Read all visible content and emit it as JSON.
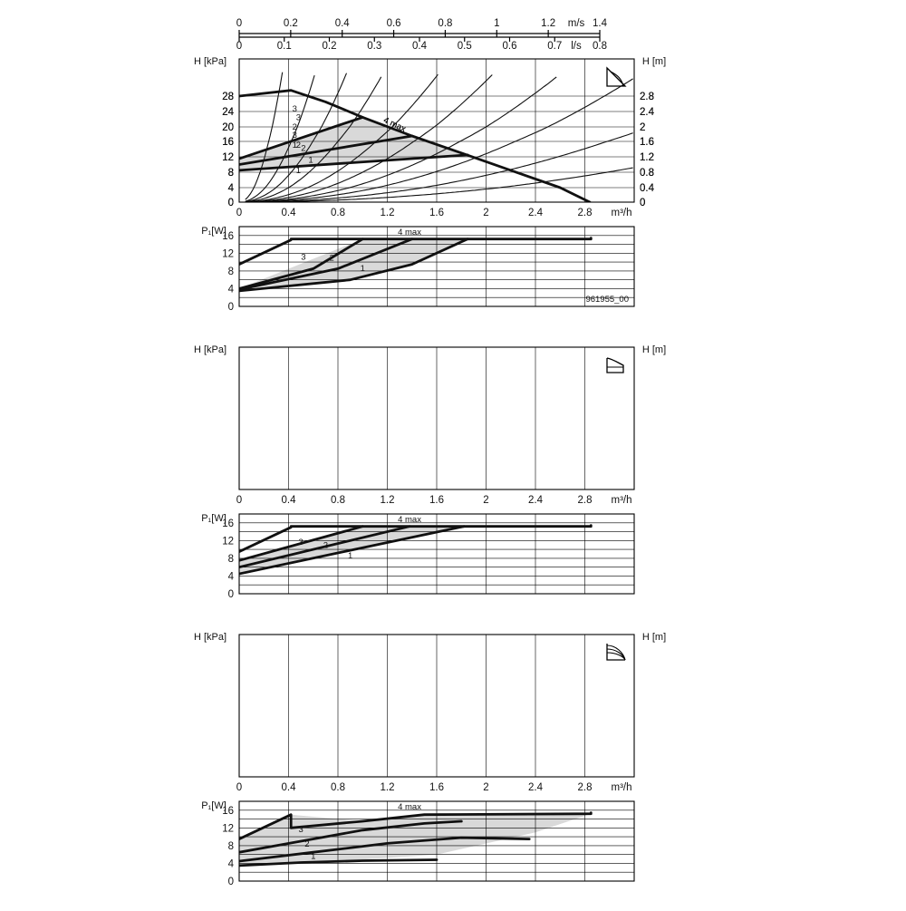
{
  "top_axes": {
    "velocity": {
      "unit": "m/s",
      "ticks": [
        0,
        0.2,
        0.4,
        0.6,
        0.8,
        1,
        1.2,
        1.4
      ]
    },
    "flow_ls": {
      "unit": "l/s",
      "ticks": [
        0,
        0.1,
        0.2,
        0.3,
        0.4,
        0.5,
        0.6,
        0.7,
        0.8
      ]
    }
  },
  "chart_data": [
    {
      "type": "line",
      "panel": "head",
      "mode_icon": "proportional-pressure-icon",
      "xlabel": "m³/h",
      "ylabel_left": "H [kPa]",
      "ylabel_right": "H [m]",
      "xlim": [
        0,
        3.2
      ],
      "ylim": [
        0,
        32
      ],
      "x_ticks": [
        "0",
        "0.4",
        "0.8",
        "1.2",
        "1.6",
        "2",
        "2.4",
        "2.8"
      ],
      "y_ticks": [
        "0",
        "4",
        "8",
        "12",
        "16",
        "20",
        "24",
        "28"
      ],
      "y_right_ticks": [
        "0",
        "0.4",
        "0.8",
        "1.2",
        "1.6",
        "2",
        "2.4",
        "2.8"
      ],
      "series": [
        {
          "name": "4 max",
          "x": [
            0,
            0.42,
            0.7,
            1.0,
            1.4,
            1.8,
            2.2,
            2.6,
            2.84
          ],
          "y": [
            28,
            29.5,
            26.5,
            22.5,
            17.5,
            13,
            8.5,
            4,
            0
          ]
        },
        {
          "name": "3",
          "x": [
            0,
            1.0
          ],
          "y": [
            11.5,
            22.5
          ]
        },
        {
          "name": "2",
          "x": [
            0,
            1.4
          ],
          "y": [
            10,
            17.5
          ]
        },
        {
          "name": "1",
          "x": [
            0,
            1.85
          ],
          "y": [
            8.5,
            12.5
          ]
        }
      ],
      "shaded_region": {
        "x": [
          0,
          1.0,
          1.4,
          1.85,
          0
        ],
        "y": [
          11.5,
          22.5,
          17.5,
          12.5,
          8.5
        ]
      },
      "label_positions": [
        {
          "name": "4 max",
          "x": 1.25,
          "y": 20
        },
        {
          "name": "3",
          "x": 0.45,
          "y": 17
        },
        {
          "name": "2",
          "x": 0.52,
          "y": 13.5
        },
        {
          "name": "1",
          "x": 0.58,
          "y": 10.5
        }
      ],
      "system_curves": [
        {
          "k": 280
        },
        {
          "k": 90
        },
        {
          "k": 45
        },
        {
          "k": 25
        },
        {
          "k": 13
        },
        {
          "k": 8
        },
        {
          "k": 5
        },
        {
          "k": 3.2
        },
        {
          "k": 1.8
        },
        {
          "k": 0.9
        }
      ]
    },
    {
      "type": "line",
      "panel": "power",
      "ylabel": "P₁[W]",
      "xlim": [
        0,
        3.2
      ],
      "ylim": [
        0,
        18
      ],
      "y_ticks": [
        "0",
        "4",
        "8",
        "12",
        "16"
      ],
      "code": "961955_00",
      "series": [
        {
          "name": "4 max",
          "x": [
            0,
            0.42,
            0.42,
            2.85,
            2.85
          ],
          "y": [
            9.5,
            15,
            15.2,
            15.2,
            15.4
          ]
        },
        {
          "name": "3",
          "x": [
            0,
            0.6,
            1.0
          ],
          "y": [
            4,
            8.5,
            15.2
          ]
        },
        {
          "name": "2",
          "x": [
            0,
            0.8,
            1.4
          ],
          "y": [
            3.8,
            8.5,
            15.2
          ]
        },
        {
          "name": "1",
          "x": [
            0,
            0.9,
            1.4,
            1.85
          ],
          "y": [
            3.5,
            6,
            9.5,
            15.2
          ]
        }
      ],
      "shaded_region": {
        "x": [
          0,
          1.0,
          1.85,
          1.4,
          0.9
        ],
        "y": [
          4,
          15.2,
          15.2,
          9.5,
          6
        ]
      },
      "label_positions": [
        {
          "name": "4 max",
          "x": 1.38,
          "y": 16.2
        },
        {
          "name": "3",
          "x": 0.52,
          "y": 10.5
        },
        {
          "name": "2",
          "x": 0.75,
          "y": 10.3
        },
        {
          "name": "1",
          "x": 1.0,
          "y": 8
        }
      ]
    },
    {
      "type": "line",
      "panel": "head",
      "mode_icon": "constant-pressure-icon",
      "xlabel": "m³/h",
      "ylabel_left": "H [kPa]",
      "ylabel_right": "H [m]",
      "xlim": [
        0,
        3.2
      ],
      "ylim": [
        0,
        32
      ],
      "x_ticks": [
        "0",
        "0.4",
        "0.8",
        "1.2",
        "1.6",
        "2",
        "2.4",
        "2.8"
      ],
      "y_ticks": [
        "0",
        "4",
        "8",
        "12",
        "16",
        "20",
        "24",
        "28"
      ],
      "y_right_ticks": [
        "0",
        "0.4",
        "0.8",
        "1.2",
        "1.6",
        "2",
        "2.4",
        "2.8"
      ],
      "series": [
        {
          "name": "4 max",
          "x": [
            0,
            0.42,
            0.7,
            1.0,
            1.4,
            1.8,
            2.2,
            2.6,
            2.84
          ],
          "y": [
            28,
            29.5,
            26.5,
            22.5,
            17.5,
            13,
            8.5,
            4,
            0
          ]
        },
        {
          "name": "3",
          "x": [
            0,
            1.0
          ],
          "y": [
            22.5,
            22.5
          ]
        },
        {
          "name": "2",
          "x": [
            0,
            1.38
          ],
          "y": [
            18,
            18
          ]
        },
        {
          "name": "1",
          "x": [
            0,
            1.82
          ],
          "y": [
            13,
            13
          ]
        }
      ],
      "shaded_region": {
        "x": [
          0,
          1.0,
          1.82,
          0
        ],
        "y": [
          22.5,
          22.5,
          13,
          13
        ]
      },
      "label_positions": [
        {
          "name": "4 max",
          "x": 1.25,
          "y": 20
        },
        {
          "name": "3",
          "x": 0.45,
          "y": 24
        },
        {
          "name": "2",
          "x": 0.45,
          "y": 19.3
        },
        {
          "name": "1",
          "x": 0.45,
          "y": 14.3
        }
      ],
      "system_curves": [
        {
          "k": 280
        },
        {
          "k": 90
        },
        {
          "k": 45
        },
        {
          "k": 25
        },
        {
          "k": 13
        },
        {
          "k": 8
        },
        {
          "k": 5
        },
        {
          "k": 3.2
        },
        {
          "k": 1.8
        },
        {
          "k": 0.9
        }
      ]
    },
    {
      "type": "line",
      "panel": "power",
      "ylabel": "P₁[W]",
      "xlim": [
        0,
        3.2
      ],
      "ylim": [
        0,
        18
      ],
      "y_ticks": [
        "0",
        "4",
        "8",
        "12",
        "16"
      ],
      "series": [
        {
          "name": "4 max",
          "x": [
            0,
            0.42,
            0.42,
            2.85,
            2.85
          ],
          "y": [
            9.5,
            15,
            15.2,
            15.2,
            15.4
          ]
        },
        {
          "name": "3",
          "x": [
            0,
            1.0
          ],
          "y": [
            7.5,
            15.2
          ]
        },
        {
          "name": "2",
          "x": [
            0,
            1.38
          ],
          "y": [
            6,
            15.2
          ]
        },
        {
          "name": "1",
          "x": [
            0,
            1.82
          ],
          "y": [
            4.5,
            15.2
          ]
        }
      ],
      "shaded_region": {
        "x": [
          0,
          1.0,
          1.82,
          0
        ],
        "y": [
          7.5,
          15.2,
          15.2,
          4.5
        ]
      },
      "label_positions": [
        {
          "name": "4 max",
          "x": 1.38,
          "y": 16.2
        },
        {
          "name": "3",
          "x": 0.5,
          "y": 11
        },
        {
          "name": "2",
          "x": 0.7,
          "y": 10.3
        },
        {
          "name": "1",
          "x": 0.9,
          "y": 8
        }
      ]
    },
    {
      "type": "line",
      "panel": "head",
      "mode_icon": "constant-curve-icon",
      "xlabel": "m³/h",
      "ylabel_left": "H [kPa]",
      "ylabel_right": "H [m]",
      "xlim": [
        0,
        3.2
      ],
      "ylim": [
        0,
        32
      ],
      "x_ticks": [
        "0",
        "0.4",
        "0.8",
        "1.2",
        "1.6",
        "2",
        "2.4",
        "2.8"
      ],
      "y_ticks": [
        "0",
        "4",
        "8",
        "12",
        "16",
        "20",
        "24",
        "28"
      ],
      "y_right_ticks": [
        "0",
        "0.4",
        "0.8",
        "1.2",
        "1.6",
        "2",
        "2.4",
        "2.8"
      ],
      "series": [
        {
          "name": "4 max",
          "x": [
            0,
            0.42,
            0.7,
            1.0,
            1.4,
            1.8,
            2.2,
            2.6,
            2.84
          ],
          "y": [
            28,
            29.5,
            26.5,
            22.5,
            17.5,
            13,
            8.5,
            4,
            0
          ]
        },
        {
          "name": "3",
          "x": [
            0,
            0.5,
            1.0,
            1.5,
            1.8
          ],
          "y": [
            19.5,
            20.5,
            19,
            16,
            14
          ]
        },
        {
          "name": "2",
          "x": [
            0,
            0.5,
            1.0,
            1.5,
            2.0,
            2.35
          ],
          "y": [
            13,
            13,
            12,
            9.5,
            5,
            1
          ]
        },
        {
          "name": "1",
          "x": [
            0,
            0.4,
            0.8,
            1.2,
            1.6
          ],
          "y": [
            6.5,
            6.5,
            5.5,
            3.5,
            1
          ]
        }
      ],
      "shaded_region": {
        "x": [
          0,
          0.42,
          0.7,
          1.0,
          1.4,
          1.8,
          2.2,
          2.6,
          2.84,
          0
        ],
        "y": [
          28,
          29.5,
          26.5,
          22.5,
          17.5,
          13,
          8.5,
          4,
          0,
          0
        ]
      },
      "label_positions": [
        {
          "name": "4 max",
          "x": 1.25,
          "y": 20
        },
        {
          "name": "3",
          "x": 0.48,
          "y": 21.8
        },
        {
          "name": "2",
          "x": 0.48,
          "y": 14.3
        },
        {
          "name": "1",
          "x": 0.48,
          "y": 7.8
        }
      ],
      "system_curves": [
        {
          "k": 280
        },
        {
          "k": 90
        },
        {
          "k": 45
        },
        {
          "k": 25
        },
        {
          "k": 13
        },
        {
          "k": 8
        },
        {
          "k": 5
        },
        {
          "k": 3.2
        },
        {
          "k": 1.8
        },
        {
          "k": 0.9
        }
      ]
    },
    {
      "type": "line",
      "panel": "power",
      "ylabel": "P₁[W]",
      "xlim": [
        0,
        3.2
      ],
      "ylim": [
        0,
        18
      ],
      "y_ticks": [
        "0",
        "4",
        "8",
        "12",
        "16"
      ],
      "series": [
        {
          "name": "4 max",
          "x": [
            0,
            0.42,
            0.42,
            1.0,
            1.5,
            2.85,
            2.85
          ],
          "y": [
            9.5,
            15,
            12,
            13.5,
            15,
            15.2,
            15.4
          ]
        },
        {
          "name": "3",
          "x": [
            0,
            0.5,
            1.0,
            1.5,
            1.8
          ],
          "y": [
            6.5,
            9,
            11.5,
            13,
            13.5
          ]
        },
        {
          "name": "2",
          "x": [
            0,
            0.6,
            1.2,
            1.8,
            2.35
          ],
          "y": [
            4.5,
            6.5,
            8.5,
            9.8,
            9.5
          ]
        },
        {
          "name": "1",
          "x": [
            0,
            0.5,
            1.0,
            1.6
          ],
          "y": [
            3.5,
            4.2,
            4.6,
            4.8
          ]
        }
      ],
      "shaded_region": {
        "x": [
          0,
          0.42,
          1.0,
          1.5,
          2.85,
          2.4,
          1.6,
          0.8,
          0
        ],
        "y": [
          9.5,
          15,
          13.5,
          15,
          15.2,
          11,
          6,
          4.5,
          3.5
        ]
      },
      "label_positions": [
        {
          "name": "4 max",
          "x": 1.38,
          "y": 16.2
        },
        {
          "name": "3",
          "x": 0.5,
          "y": 11
        },
        {
          "name": "2",
          "x": 0.55,
          "y": 7.8
        },
        {
          "name": "1",
          "x": 0.6,
          "y": 5
        }
      ]
    }
  ]
}
